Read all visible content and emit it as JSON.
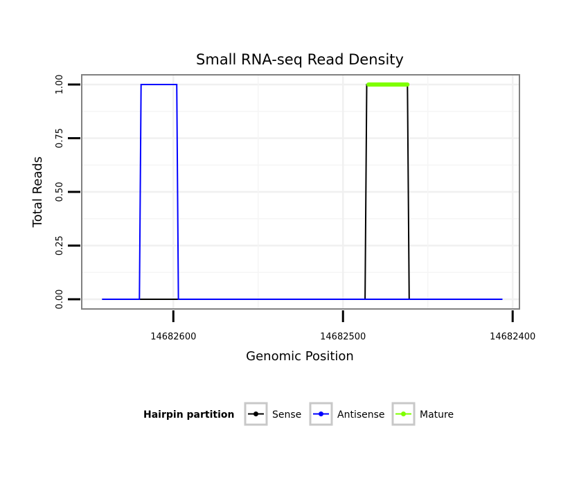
{
  "chart_data": {
    "type": "line",
    "title": "Small RNA-seq Read Density",
    "xlabel": "Genomic Position",
    "ylabel": "Total Reads",
    "x_reversed": true,
    "xlim": [
      14682654,
      14682396
    ],
    "ylim": [
      -0.045,
      1.045
    ],
    "x_ticks": [
      14682600,
      14682500,
      14682400
    ],
    "x_tick_labels": [
      "14682600",
      "14682500",
      "14682400"
    ],
    "y_ticks": [
      0,
      0.25,
      0.5,
      0.75,
      1
    ],
    "y_tick_labels": [
      "0.00",
      "0.25",
      "0.50",
      "0.75",
      "1.00"
    ],
    "grid": true,
    "legend": {
      "title": "Hairpin partition",
      "position": "bottom"
    },
    "series": [
      {
        "name": "Sense",
        "color": "#000000",
        "x": [
          14682642,
          14682487,
          14682486,
          14682462,
          14682461,
          14682406
        ],
        "y": [
          0,
          0,
          1,
          1,
          0,
          0
        ]
      },
      {
        "name": "Antisense",
        "color": "#0000ff",
        "x": [
          14682642,
          14682620,
          14682619,
          14682598,
          14682597,
          14682487,
          14682462,
          14682406
        ],
        "y": [
          0,
          0,
          1,
          1,
          0,
          0,
          0,
          0
        ]
      },
      {
        "name": "Mature",
        "color": "#7fff00",
        "x": [
          14682485,
          14682462
        ],
        "y": [
          1,
          1
        ]
      }
    ]
  }
}
